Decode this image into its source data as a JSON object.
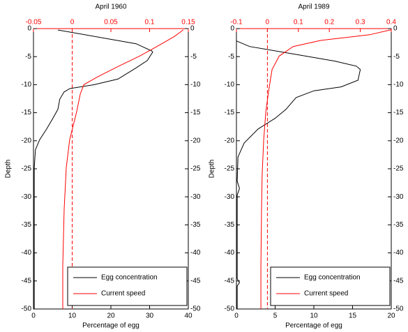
{
  "chart_data": [
    {
      "type": "line",
      "title": "April 1960",
      "xlabel": "Percentage of egg",
      "ylabel": "Depth",
      "xlim": [
        0,
        40
      ],
      "xticks": [
        0,
        10,
        20,
        30,
        40
      ],
      "x2lim": [
        -0.05,
        0.15
      ],
      "x2ticks": [
        -0.05,
        0,
        0.05,
        0.1,
        0.15
      ],
      "x2_color": "#ff0000",
      "x2_reference_line": 0,
      "ylim": [
        -50,
        0
      ],
      "yticks": [
        0,
        -5,
        -10,
        -15,
        -20,
        -25,
        -30,
        -35,
        -40,
        -45,
        -50
      ],
      "legend": "lower right",
      "series": [
        {
          "name": "Egg concentration",
          "color": "#000000",
          "axis": "x",
          "values": [
            6.3,
            26.5,
            30.6,
            30.8,
            29.4,
            26.3,
            21.8,
            15.7,
            9.4,
            7.9,
            6.8,
            6.3,
            5,
            3.4,
            1.6,
            0.5,
            0.2,
            0.2,
            0.2,
            0.2
          ],
          "depths": [
            -0.25,
            -2.7,
            -4,
            -4.2,
            -5.7,
            -7.1,
            -9,
            -10,
            -10.7,
            -11.3,
            -12.6,
            -14.4,
            -16,
            -17.9,
            -19.8,
            -21.6,
            -24.8,
            -32,
            -44.6,
            -50
          ]
        },
        {
          "name": "Current speed",
          "color": "#ff0000",
          "axis": "x2",
          "values": [
            0.1437,
            0.132,
            0.1095,
            0.087,
            0.06,
            0.033,
            0.015,
            0.0104,
            0.0059,
            -0.0032,
            -0.0077,
            -0.0104,
            -0.0122,
            -0.0122
          ],
          "depths": [
            -0.2,
            -1.4,
            -3.2,
            -4.9,
            -6.7,
            -8.6,
            -10,
            -11.7,
            -14.8,
            -19.8,
            -24.8,
            -32.2,
            -42.2,
            -50
          ]
        }
      ]
    },
    {
      "type": "line",
      "title": "April 1989",
      "xlabel": "Percentage of egg",
      "ylabel": "Depth",
      "xlim": [
        0,
        20
      ],
      "xticks": [
        0,
        5,
        10,
        15,
        20
      ],
      "x2lim": [
        -0.1,
        0.4
      ],
      "x2ticks": [
        -0.1,
        0,
        0.1,
        0.2,
        0.3,
        0.4
      ],
      "x2_color": "#ff0000",
      "x2_reference_line": 0,
      "ylim": [
        -50,
        0
      ],
      "yticks": [
        0,
        -5,
        -10,
        -15,
        -20,
        -25,
        -30,
        -35,
        -40,
        -45,
        -50
      ],
      "legend": "lower right",
      "series": [
        {
          "name": "Egg concentration",
          "color": "#000000",
          "axis": "x",
          "values": [
            0,
            1.7,
            7.3,
            12.7,
            15.5,
            16,
            15.7,
            13.5,
            10,
            7.7,
            6.4,
            5,
            2.8,
            1,
            0.2,
            0.1,
            0.4,
            0.1,
            0.1,
            0.4,
            0.1,
            0.1
          ],
          "depths": [
            -2.2,
            -3.2,
            -4.5,
            -5.8,
            -6.7,
            -7.3,
            -9.2,
            -10.4,
            -11.1,
            -12.3,
            -14.4,
            -16,
            -17.9,
            -20.4,
            -22.9,
            -27.2,
            -28.5,
            -29.7,
            -44.6,
            -45.3,
            -45.9,
            -50
          ]
        },
        {
          "name": "Current speed",
          "color": "#ff0000",
          "axis": "x2",
          "values": [
            0.4,
            0.33,
            0.173,
            0.083,
            0.038,
            0.015,
            0.004,
            -0.005,
            -0.012,
            -0.017,
            -0.019,
            -0.021,
            -0.021
          ],
          "depths": [
            -0.2,
            -1.1,
            -2.1,
            -3.2,
            -4.9,
            -7.3,
            -11.1,
            -14.8,
            -19.8,
            -26,
            -32.2,
            -42.2,
            -50
          ]
        }
      ]
    }
  ]
}
